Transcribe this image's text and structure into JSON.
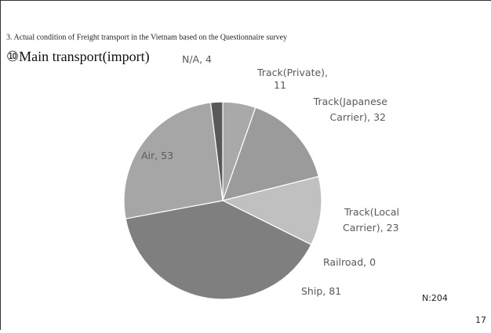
{
  "header": "3. Actual condition of Freight transport  in the Vietnam based on the Questionnaire survey",
  "note": "N:204",
  "page_number": "17",
  "chart_data": {
    "type": "pie",
    "title": "⑩Main transport(import)",
    "values": [
      11,
      32,
      23,
      0,
      81,
      53,
      4
    ],
    "value_labels": [
      "Track(Private),\n11",
      "Track(Japanese\nCarrier), 32",
      "Track(Local\nCarrier), 23",
      "Railroad, 0",
      "Ship, 81",
      "Air, 53",
      "N/A, 4"
    ],
    "colors": [
      "#a9a9a9",
      "#9b9b9b",
      "#c0c0c0",
      "#b0b0b0",
      "#7f7f7f",
      "#a6a6a6",
      "#595959"
    ]
  }
}
